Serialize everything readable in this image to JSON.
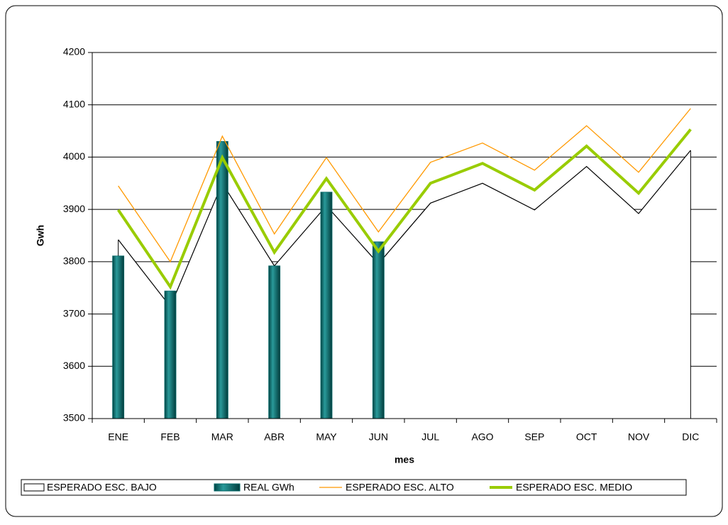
{
  "chart_data": {
    "type": "combo",
    "categories": [
      "ENE",
      "FEB",
      "MAR",
      "ABR",
      "MAY",
      "JUN",
      "JUL",
      "AGO",
      "SEP",
      "OCT",
      "NOV",
      "DIC"
    ],
    "series": [
      {
        "name": "ESPERADO ESC. BAJO",
        "type": "area",
        "color": "#000000",
        "values": [
          3842,
          3714,
          3950,
          3792,
          3907,
          3796,
          3912,
          3950,
          3899,
          3982,
          3892,
          4013
        ]
      },
      {
        "name": "REAL GWh",
        "type": "bar",
        "color": "#006666",
        "values": [
          3811,
          3744,
          4030,
          3792,
          3933,
          3838,
          null,
          null,
          null,
          null,
          null,
          null
        ]
      },
      {
        "name": "ESPERADO ESC. ALTO",
        "type": "line",
        "color": "#ff9900",
        "values": [
          3945,
          3800,
          4040,
          3853,
          3999,
          3857,
          3990,
          4027,
          3975,
          4060,
          3971,
          4093
        ]
      },
      {
        "name": "ESPERADO ESC. MEDIO",
        "type": "line",
        "color": "#99cc00",
        "values": [
          3899,
          3752,
          3999,
          3818,
          3959,
          3820,
          3950,
          3988,
          3937,
          4021,
          3931,
          4053
        ]
      }
    ],
    "x_label": "mes",
    "y_label": "Gwh",
    "ylim": [
      3500,
      4200
    ],
    "yticks": [
      3500,
      3600,
      3700,
      3800,
      3900,
      4000,
      4100,
      4200
    ],
    "grid": true,
    "legend": "bottom"
  }
}
